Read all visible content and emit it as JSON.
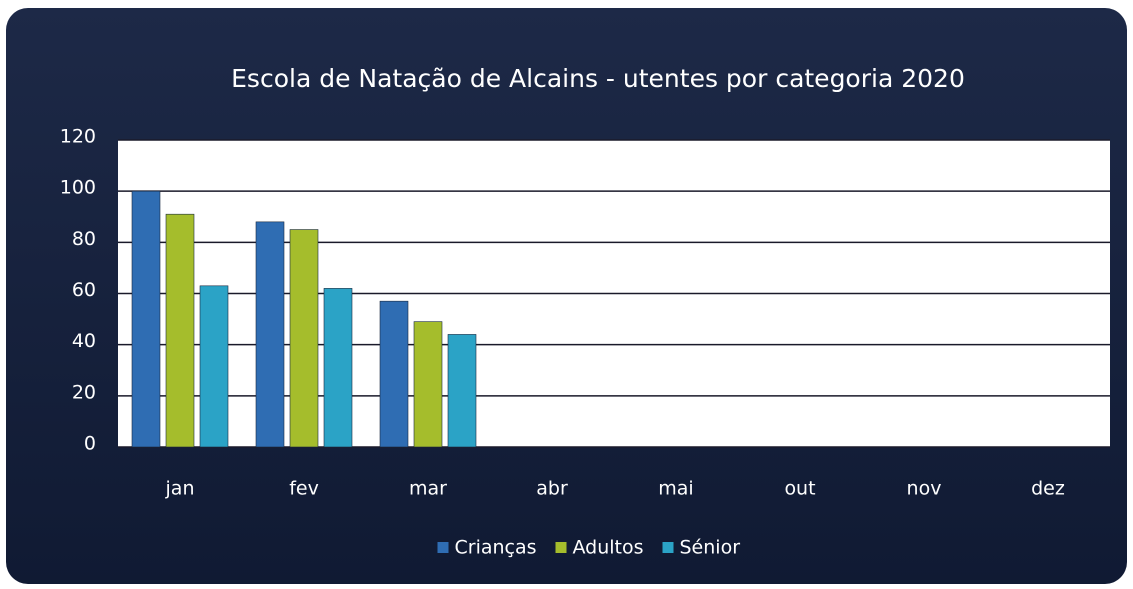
{
  "chart_data": {
    "type": "bar",
    "title": "Escola de Natação de Alcains - utentes por categoria 2020",
    "categories": [
      "jan",
      "fev",
      "mar",
      "abr",
      "mai",
      "out",
      "nov",
      "dez"
    ],
    "series": [
      {
        "name": "Crianças",
        "color": "#2f6db3",
        "values": [
          100,
          88,
          57,
          null,
          null,
          null,
          null,
          null
        ]
      },
      {
        "name": "Adultos",
        "color": "#a5bd2c",
        "values": [
          91,
          85,
          49,
          null,
          null,
          null,
          null,
          null
        ]
      },
      {
        "name": "Sénior",
        "color": "#2ba3c6",
        "values": [
          63,
          62,
          44,
          null,
          null,
          null,
          null,
          null
        ]
      }
    ],
    "ylim": [
      0,
      120
    ],
    "yticks": [
      0,
      20,
      40,
      60,
      80,
      100,
      120
    ],
    "grid": true,
    "legend": "bottom"
  }
}
